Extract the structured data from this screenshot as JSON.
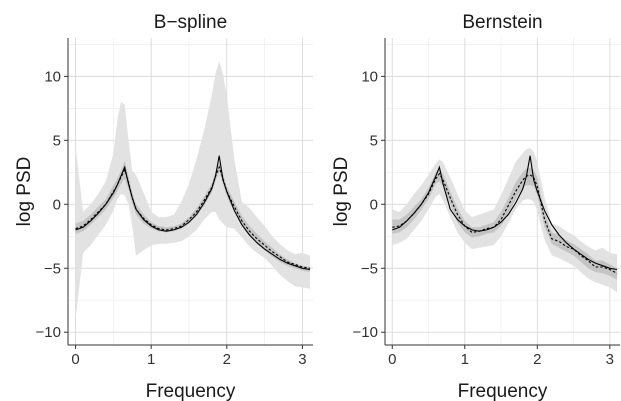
{
  "chart_data": [
    {
      "type": "line",
      "title": "B−spline",
      "xlabel": "Frequency",
      "ylabel": "log PSD",
      "xlim": [
        -0.1,
        3.14
      ],
      "ylim": [
        -11,
        13
      ],
      "xticks": [
        0,
        1,
        2,
        3
      ],
      "xtick_labels": [
        "0",
        "1",
        "2",
        "3"
      ],
      "yticks": [
        -10,
        -5,
        0,
        5,
        10
      ],
      "ytick_labels": [
        "−10",
        "−5",
        "0",
        "5",
        "10"
      ],
      "grid": true,
      "colors": {
        "outer_band": "#e2e2e2",
        "inner_band": "#c4c4c4",
        "true": "#000000",
        "estimate": "#000000"
      },
      "x": [
        0,
        0.1,
        0.2,
        0.3,
        0.4,
        0.5,
        0.55,
        0.6,
        0.65,
        0.7,
        0.75,
        0.8,
        0.9,
        1.0,
        1.1,
        1.2,
        1.3,
        1.4,
        1.5,
        1.6,
        1.7,
        1.8,
        1.85,
        1.9,
        1.95,
        2.0,
        2.1,
        2.2,
        2.3,
        2.4,
        2.5,
        2.6,
        2.7,
        2.8,
        2.9,
        3.0,
        3.1
      ],
      "series": [
        {
          "role": "outer_lower",
          "values": [
            -9.0,
            -3.8,
            -3.2,
            -2.4,
            -1.6,
            -0.5,
            0.4,
            0.8,
            0.7,
            0.0,
            -1.8,
            -4.0,
            -3.6,
            -3.2,
            -3.1,
            -3.1,
            -3.0,
            -2.9,
            -2.5,
            -2.0,
            -1.2,
            -0.6,
            -0.6,
            -1.2,
            -1.5,
            -1.8,
            -1.9,
            -2.6,
            -3.3,
            -3.8,
            -4.2,
            -4.8,
            -5.5,
            -6.0,
            -6.4,
            -6.5,
            -6.6
          ]
        },
        {
          "role": "outer_upper",
          "values": [
            4.5,
            -0.6,
            0.0,
            0.8,
            1.8,
            4.0,
            6.5,
            8.0,
            7.8,
            5.0,
            2.6,
            2.3,
            0.9,
            -0.6,
            -1.0,
            -1.0,
            -0.8,
            0.2,
            1.6,
            3.5,
            5.8,
            8.5,
            10.2,
            11.2,
            10.2,
            8.5,
            3.5,
            0.2,
            -0.3,
            -1.0,
            -1.7,
            -2.5,
            -3.1,
            -3.6,
            -3.9,
            -3.8,
            -4.0
          ]
        },
        {
          "role": "inner_lower",
          "values": [
            -2.3,
            -2.1,
            -1.6,
            -1.0,
            -0.4,
            0.5,
            1.0,
            1.6,
            2.0,
            1.2,
            0.0,
            -0.8,
            -1.5,
            -1.9,
            -2.1,
            -2.2,
            -2.1,
            -1.9,
            -1.5,
            -0.9,
            -0.1,
            0.9,
            1.8,
            2.5,
            1.6,
            0.6,
            -0.6,
            -1.7,
            -2.5,
            -3.1,
            -3.6,
            -4.1,
            -4.5,
            -4.8,
            -5.0,
            -5.2,
            -5.3
          ]
        },
        {
          "role": "inner_upper",
          "values": [
            -1.5,
            -1.3,
            -0.8,
            -0.2,
            0.4,
            1.5,
            2.0,
            2.6,
            3.4,
            2.2,
            0.9,
            0.0,
            -0.8,
            -1.4,
            -1.7,
            -1.8,
            -1.7,
            -1.5,
            -1.0,
            -0.3,
            0.6,
            1.6,
            2.6,
            3.3,
            2.4,
            1.4,
            0.2,
            -0.9,
            -1.7,
            -2.3,
            -2.9,
            -3.4,
            -3.9,
            -4.3,
            -4.6,
            -4.8,
            -4.9
          ]
        },
        {
          "role": "true",
          "values": [
            -2.0,
            -1.8,
            -1.3,
            -0.7,
            0.0,
            0.9,
            1.5,
            2.2,
            2.9,
            1.6,
            0.5,
            -0.4,
            -1.2,
            -1.7,
            -2.0,
            -2.1,
            -2.0,
            -1.8,
            -1.4,
            -0.8,
            0.1,
            1.2,
            2.2,
            3.8,
            1.9,
            1.0,
            -0.5,
            -1.6,
            -2.4,
            -3.0,
            -3.5,
            -3.9,
            -4.3,
            -4.6,
            -4.8,
            -5.0,
            -5.1
          ]
        },
        {
          "role": "estimate",
          "values": [
            -1.9,
            -1.7,
            -1.2,
            -0.6,
            0.0,
            1.0,
            1.5,
            2.1,
            2.7,
            1.7,
            0.5,
            -0.4,
            -1.1,
            -1.6,
            -1.9,
            -2.0,
            -1.9,
            -1.7,
            -1.2,
            -0.6,
            0.3,
            1.3,
            2.2,
            2.9,
            2.0,
            1.0,
            -0.2,
            -1.3,
            -2.1,
            -2.7,
            -3.2,
            -3.7,
            -4.1,
            -4.5,
            -4.7,
            -4.9,
            -5.0
          ]
        }
      ]
    },
    {
      "type": "line",
      "title": "Bernstein",
      "xlabel": "Frequency",
      "ylabel": "log PSD",
      "xlim": [
        -0.1,
        3.14
      ],
      "ylim": [
        -11,
        13
      ],
      "xticks": [
        0,
        1,
        2,
        3
      ],
      "xtick_labels": [
        "0",
        "1",
        "2",
        "3"
      ],
      "yticks": [
        -10,
        -5,
        0,
        5,
        10
      ],
      "ytick_labels": [
        "−10",
        "−5",
        "0",
        "5",
        "10"
      ],
      "grid": true,
      "colors": {
        "outer_band": "#e2e2e2",
        "inner_band": "#c4c4c4",
        "true": "#000000",
        "estimate": "#000000"
      },
      "x": [
        0,
        0.1,
        0.2,
        0.3,
        0.4,
        0.5,
        0.6,
        0.65,
        0.7,
        0.8,
        0.9,
        1.0,
        1.1,
        1.2,
        1.3,
        1.4,
        1.5,
        1.6,
        1.7,
        1.8,
        1.85,
        1.9,
        1.95,
        2.0,
        2.1,
        2.2,
        2.3,
        2.4,
        2.5,
        2.6,
        2.7,
        2.8,
        2.9,
        3.0,
        3.1
      ],
      "series": [
        {
          "role": "outer_lower",
          "values": [
            -3.2,
            -3.0,
            -2.7,
            -2.0,
            -1.3,
            -0.4,
            0.6,
            0.8,
            0.3,
            -1.0,
            -2.2,
            -3.0,
            -3.5,
            -3.4,
            -3.3,
            -3.2,
            -2.5,
            -1.5,
            -0.4,
            0.3,
            0.4,
            0.4,
            0.2,
            -0.5,
            -2.8,
            -4.0,
            -4.2,
            -4.5,
            -4.8,
            -5.3,
            -5.8,
            -6.1,
            -6.3,
            -6.5,
            -6.9
          ]
        },
        {
          "role": "outer_upper",
          "values": [
            -0.4,
            -0.6,
            0.0,
            0.8,
            1.5,
            2.3,
            3.2,
            3.5,
            3.3,
            2.1,
            0.8,
            -0.5,
            -1.0,
            -0.8,
            -0.6,
            -0.4,
            0.7,
            2.0,
            3.3,
            4.0,
            4.3,
            4.4,
            4.1,
            3.3,
            0.5,
            -1.5,
            -1.7,
            -2.1,
            -2.4,
            -2.9,
            -3.3,
            -3.6,
            -3.4,
            -3.8,
            -3.9
          ]
        },
        {
          "role": "inner_lower",
          "values": [
            -2.3,
            -2.2,
            -1.8,
            -1.2,
            -0.4,
            0.4,
            1.6,
            1.8,
            1.4,
            0.0,
            -1.4,
            -2.2,
            -2.6,
            -2.5,
            -2.3,
            -2.2,
            -1.7,
            -0.8,
            0.4,
            1.3,
            1.5,
            1.5,
            1.4,
            0.7,
            -1.8,
            -3.1,
            -3.4,
            -3.7,
            -4.0,
            -4.5,
            -5.0,
            -5.3,
            -5.4,
            -5.6,
            -5.9
          ]
        },
        {
          "role": "inner_upper",
          "values": [
            -1.2,
            -1.2,
            -0.8,
            -0.2,
            0.4,
            1.3,
            2.5,
            2.8,
            2.4,
            1.0,
            -0.3,
            -1.3,
            -1.8,
            -1.8,
            -1.6,
            -1.4,
            -0.6,
            0.5,
            1.7,
            2.5,
            2.8,
            2.9,
            2.7,
            2.1,
            -0.6,
            -2.2,
            -2.4,
            -2.8,
            -3.1,
            -3.5,
            -3.9,
            -4.4,
            -4.4,
            -4.7,
            -5.0
          ]
        },
        {
          "role": "true",
          "values": [
            -2.0,
            -1.8,
            -1.3,
            -0.7,
            0.0,
            0.9,
            2.2,
            2.9,
            1.6,
            -0.4,
            -1.2,
            -1.7,
            -2.0,
            -2.1,
            -2.0,
            -1.8,
            -1.4,
            -0.8,
            0.1,
            1.2,
            2.2,
            3.8,
            1.9,
            1.0,
            -0.5,
            -1.6,
            -2.4,
            -3.0,
            -3.5,
            -3.9,
            -4.3,
            -4.6,
            -4.8,
            -5.0,
            -5.1
          ]
        },
        {
          "role": "estimate",
          "values": [
            -1.8,
            -1.7,
            -1.3,
            -0.7,
            0.0,
            0.8,
            2.0,
            2.4,
            1.9,
            0.5,
            -0.8,
            -1.7,
            -2.2,
            -2.1,
            -1.9,
            -1.8,
            -1.2,
            -0.1,
            1.0,
            1.9,
            2.2,
            2.3,
            2.1,
            1.4,
            -1.2,
            -2.7,
            -2.9,
            -3.3,
            -3.5,
            -4.0,
            -4.4,
            -4.9,
            -4.9,
            -5.1,
            -5.4
          ]
        }
      ]
    }
  ]
}
